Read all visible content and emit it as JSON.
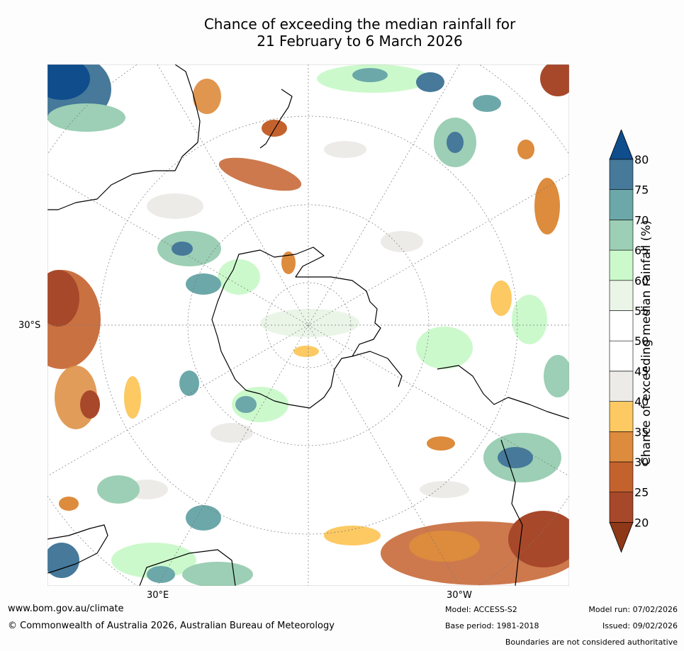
{
  "title_line1": "Chance of exceeding the median rainfall for",
  "title_line2": "21 February to 6 March 2026",
  "map": {
    "projection": "south-polar-stereographic",
    "lat_label": "30°S",
    "lon_labels": [
      "30°E",
      "30°W"
    ],
    "land_outline_color": "#000000",
    "background_color": "#ffffff"
  },
  "colorbar": {
    "title": "Chance of exceeding median rainfall (%)",
    "extend": "both",
    "ticks": [
      "20",
      "25",
      "30",
      "35",
      "40",
      "45",
      "50",
      "55",
      "60",
      "65",
      "70",
      "75",
      "80"
    ],
    "colors": [
      "#8e3818",
      "#a8482a",
      "#c4622e",
      "#dd8b3c",
      "#fcc963",
      "#ecebe7",
      "#ffffff",
      "#ffffff",
      "#eaf5e8",
      "#ccf9cc",
      "#9ccfb5",
      "#6ca8a9",
      "#46799a",
      "#0f4d8c"
    ]
  },
  "footer": {
    "website": "www.bom.gov.au/climate",
    "copyright": "© Commonwealth of Australia 2026, Australian Bureau of Meteorology",
    "model": "Model: ACCESS-S2",
    "base_period": "Base period: 1981-2018",
    "model_run": "Model run: 07/02/2026",
    "issued": "Issued: 09/02/2026",
    "disclaimer": "Boundaries are not considered authoritative"
  }
}
